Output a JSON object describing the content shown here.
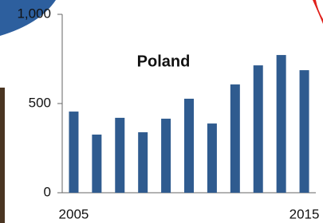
{
  "chart_data": {
    "type": "bar",
    "title": "Poland",
    "categories": [
      "2005",
      null,
      null,
      null,
      null,
      null,
      null,
      null,
      null,
      null,
      "2015"
    ],
    "values": [
      455,
      326,
      420,
      339,
      415,
      527,
      388,
      607,
      714,
      772,
      687
    ],
    "color": "#2f5b8f",
    "ylim": [
      0,
      1000
    ],
    "yticks": [
      0,
      500,
      {
        "value": 1000,
        "label": "1,000"
      }
    ],
    "grid": false
  }
}
